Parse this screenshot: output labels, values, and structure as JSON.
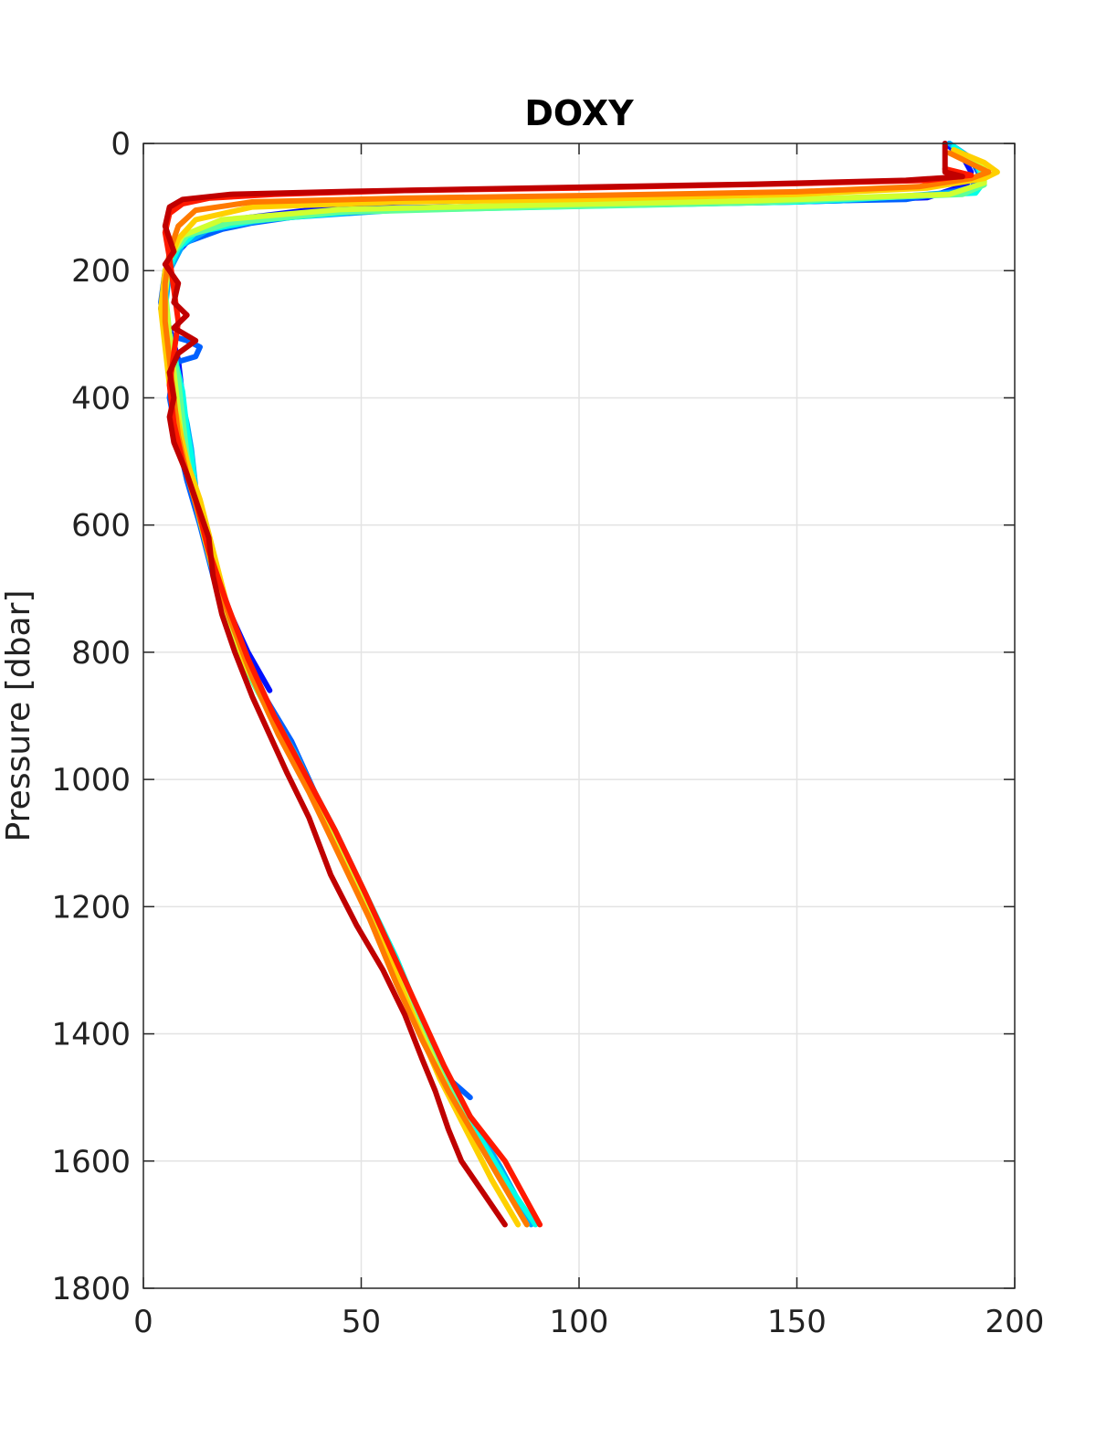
{
  "chart_data": {
    "type": "line",
    "title": "DOXY",
    "xlabel": "",
    "ylabel": "Pressure [dbar]",
    "xlim": [
      0,
      200
    ],
    "ylim": [
      0,
      1800
    ],
    "y_reversed": true,
    "grid": true,
    "xticks": [
      0,
      50,
      100,
      150,
      200
    ],
    "yticks": [
      0,
      200,
      400,
      600,
      800,
      1000,
      1200,
      1400,
      1600,
      1800
    ],
    "series": [
      {
        "color": "#0010ff",
        "points": [
          [
            184,
            0
          ],
          [
            188,
            20
          ],
          [
            190,
            45
          ],
          [
            189,
            65
          ],
          [
            180,
            85
          ],
          [
            150,
            92
          ],
          [
            110,
            97
          ],
          [
            70,
            100
          ],
          [
            40,
            103
          ],
          [
            20,
            120
          ],
          [
            12,
            140
          ],
          [
            8,
            170
          ],
          [
            5,
            210
          ],
          [
            4,
            260
          ],
          [
            6,
            290
          ],
          [
            8,
            340
          ],
          [
            9,
            400
          ],
          [
            9,
            460
          ],
          [
            10,
            520
          ],
          [
            13,
            570
          ],
          [
            15,
            620
          ],
          [
            17,
            680
          ],
          [
            20,
            740
          ],
          [
            24,
            800
          ],
          [
            29,
            860
          ]
        ]
      },
      {
        "color": "#0060ff",
        "points": [
          [
            185,
            0
          ],
          [
            190,
            25
          ],
          [
            192,
            50
          ],
          [
            190,
            70
          ],
          [
            175,
            88
          ],
          [
            120,
            95
          ],
          [
            70,
            100
          ],
          [
            40,
            110
          ],
          [
            25,
            125
          ],
          [
            18,
            135
          ],
          [
            14,
            145
          ],
          [
            8,
            160
          ],
          [
            5,
            200
          ],
          [
            4,
            250
          ],
          [
            5,
            300
          ],
          [
            10,
            310
          ],
          [
            13,
            320
          ],
          [
            12,
            335
          ],
          [
            7,
            345
          ],
          [
            6,
            400
          ],
          [
            8,
            470
          ],
          [
            10,
            530
          ],
          [
            13,
            600
          ],
          [
            16,
            680
          ],
          [
            20,
            760
          ],
          [
            27,
            860
          ],
          [
            34,
            940
          ],
          [
            40,
            1030
          ],
          [
            47,
            1140
          ],
          [
            53,
            1220
          ],
          [
            59,
            1320
          ],
          [
            65,
            1410
          ],
          [
            70,
            1470
          ],
          [
            75,
            1500
          ]
        ]
      },
      {
        "color": "#00a8ff",
        "points": [
          [
            185,
            0
          ],
          [
            191,
            28
          ],
          [
            193,
            55
          ],
          [
            190,
            75
          ],
          [
            160,
            90
          ],
          [
            110,
            97
          ],
          [
            60,
            104
          ],
          [
            30,
            118
          ],
          [
            15,
            135
          ],
          [
            9,
            160
          ],
          [
            6,
            200
          ],
          [
            5,
            260
          ],
          [
            6,
            320
          ],
          [
            8,
            380
          ],
          [
            10,
            440
          ],
          [
            11,
            480
          ],
          [
            12,
            540
          ],
          [
            15,
            620
          ],
          [
            18,
            700
          ],
          [
            22,
            790
          ],
          [
            28,
            880
          ],
          [
            35,
            960
          ],
          [
            42,
            1060
          ],
          [
            49,
            1160
          ],
          [
            56,
            1260
          ],
          [
            62,
            1360
          ],
          [
            68,
            1450
          ],
          [
            75,
            1530
          ],
          [
            82,
            1610
          ],
          [
            89,
            1700
          ]
        ]
      },
      {
        "color": "#00ffe8",
        "points": [
          [
            186,
            5
          ],
          [
            191,
            30
          ],
          [
            193,
            60
          ],
          [
            191,
            78
          ],
          [
            150,
            92
          ],
          [
            100,
            99
          ],
          [
            50,
            106
          ],
          [
            25,
            122
          ],
          [
            12,
            140
          ],
          [
            8,
            165
          ],
          [
            5,
            210
          ],
          [
            5,
            270
          ],
          [
            7,
            330
          ],
          [
            9,
            390
          ],
          [
            10,
            450
          ],
          [
            11,
            490
          ],
          [
            12,
            550
          ],
          [
            15,
            630
          ],
          [
            18,
            720
          ],
          [
            23,
            810
          ],
          [
            30,
            900
          ],
          [
            37,
            990
          ],
          [
            44,
            1080
          ],
          [
            51,
            1180
          ],
          [
            58,
            1280
          ],
          [
            64,
            1380
          ],
          [
            70,
            1470
          ],
          [
            77,
            1560
          ],
          [
            84,
            1640
          ],
          [
            90,
            1700
          ]
        ]
      },
      {
        "color": "#60ff98",
        "points": [
          [
            186,
            10
          ],
          [
            192,
            35
          ],
          [
            193,
            65
          ],
          [
            188,
            80
          ],
          [
            140,
            93
          ],
          [
            90,
            100
          ],
          [
            45,
            108
          ],
          [
            20,
            125
          ],
          [
            10,
            145
          ],
          [
            6,
            180
          ],
          [
            5,
            230
          ],
          [
            6,
            300
          ],
          [
            8,
            370
          ],
          [
            9,
            430
          ],
          [
            10,
            490
          ],
          [
            12,
            560
          ],
          [
            15,
            640
          ],
          [
            18,
            730
          ],
          [
            23,
            820
          ],
          [
            30,
            910
          ],
          [
            37,
            1000
          ],
          [
            44,
            1090
          ],
          [
            51,
            1190
          ],
          [
            58,
            1290
          ],
          [
            64,
            1390
          ],
          [
            70,
            1480
          ],
          [
            76,
            1560
          ],
          [
            82,
            1630
          ],
          [
            88,
            1700
          ]
        ]
      },
      {
        "color": "#d0ff30",
        "points": [
          [
            187,
            15
          ],
          [
            193,
            40
          ],
          [
            193,
            62
          ],
          [
            185,
            80
          ],
          [
            140,
            90
          ],
          [
            90,
            97
          ],
          [
            45,
            104
          ],
          [
            18,
            120
          ],
          [
            9,
            145
          ],
          [
            6,
            180
          ],
          [
            5,
            240
          ],
          [
            6,
            300
          ],
          [
            7,
            360
          ],
          [
            8,
            420
          ],
          [
            9,
            480
          ],
          [
            11,
            540
          ],
          [
            14,
            620
          ],
          [
            17,
            700
          ],
          [
            21,
            790
          ],
          [
            28,
            880
          ],
          [
            35,
            970
          ],
          [
            42,
            1070
          ],
          [
            49,
            1170
          ],
          [
            56,
            1270
          ],
          [
            62,
            1370
          ],
          [
            68,
            1460
          ],
          [
            74,
            1550
          ],
          [
            80,
            1630
          ],
          [
            86,
            1700
          ]
        ]
      },
      {
        "color": "#ffd000",
        "points": [
          [
            186,
            10
          ],
          [
            193,
            30
          ],
          [
            196,
            45
          ],
          [
            193,
            55
          ],
          [
            180,
            70
          ],
          [
            150,
            80
          ],
          [
            100,
            88
          ],
          [
            60,
            92
          ],
          [
            25,
            100
          ],
          [
            12,
            120
          ],
          [
            8,
            150
          ],
          [
            5,
            200
          ],
          [
            4,
            260
          ],
          [
            5,
            320
          ],
          [
            6,
            380
          ],
          [
            8,
            440
          ],
          [
            10,
            500
          ],
          [
            13,
            560
          ],
          [
            16,
            640
          ],
          [
            19,
            720
          ],
          [
            23,
            810
          ],
          [
            29,
            900
          ],
          [
            36,
            990
          ],
          [
            43,
            1090
          ],
          [
            50,
            1190
          ],
          [
            57,
            1290
          ],
          [
            63,
            1390
          ],
          [
            68,
            1470
          ],
          [
            74,
            1550
          ],
          [
            80,
            1630
          ],
          [
            86,
            1700
          ]
        ]
      },
      {
        "color": "#ff7a00",
        "points": [
          [
            185,
            15
          ],
          [
            191,
            35
          ],
          [
            194,
            45
          ],
          [
            190,
            55
          ],
          [
            178,
            68
          ],
          [
            150,
            76
          ],
          [
            100,
            82
          ],
          [
            60,
            86
          ],
          [
            25,
            92
          ],
          [
            12,
            105
          ],
          [
            8,
            130
          ],
          [
            6,
            170
          ],
          [
            5,
            220
          ],
          [
            5,
            280
          ],
          [
            6,
            340
          ],
          [
            7,
            400
          ],
          [
            8,
            460
          ],
          [
            10,
            520
          ],
          [
            13,
            590
          ],
          [
            16,
            670
          ],
          [
            20,
            750
          ],
          [
            25,
            840
          ],
          [
            31,
            930
          ],
          [
            38,
            1020
          ],
          [
            45,
            1120
          ],
          [
            52,
            1220
          ],
          [
            58,
            1320
          ],
          [
            64,
            1410
          ],
          [
            70,
            1490
          ],
          [
            76,
            1560
          ],
          [
            82,
            1630
          ],
          [
            88,
            1700
          ]
        ]
      },
      {
        "color": "#ff1a00",
        "points": [
          [
            184,
            40
          ],
          [
            190,
            50
          ],
          [
            180,
            58
          ],
          [
            150,
            63
          ],
          [
            100,
            70
          ],
          [
            60,
            74
          ],
          [
            30,
            80
          ],
          [
            15,
            86
          ],
          [
            9,
            95
          ],
          [
            6,
            110
          ],
          [
            5,
            140
          ],
          [
            6,
            180
          ],
          [
            7,
            230
          ],
          [
            8,
            280
          ],
          [
            7,
            330
          ],
          [
            6,
            380
          ],
          [
            7,
            440
          ],
          [
            9,
            500
          ],
          [
            12,
            560
          ],
          [
            15,
            640
          ],
          [
            19,
            720
          ],
          [
            24,
            810
          ],
          [
            30,
            900
          ],
          [
            37,
            990
          ],
          [
            44,
            1080
          ],
          [
            51,
            1180
          ],
          [
            57,
            1270
          ],
          [
            63,
            1360
          ],
          [
            69,
            1450
          ],
          [
            75,
            1530
          ],
          [
            83,
            1600
          ],
          [
            91,
            1700
          ]
        ]
      },
      {
        "color": "#c00000",
        "points": [
          [
            184,
            0
          ],
          [
            184,
            45
          ],
          [
            188,
            52
          ],
          [
            175,
            58
          ],
          [
            140,
            64
          ],
          [
            90,
            70
          ],
          [
            50,
            75
          ],
          [
            20,
            80
          ],
          [
            9,
            88
          ],
          [
            6,
            100
          ],
          [
            5,
            130
          ],
          [
            7,
            170
          ],
          [
            5,
            190
          ],
          [
            8,
            220
          ],
          [
            7,
            250
          ],
          [
            10,
            270
          ],
          [
            7,
            290
          ],
          [
            12,
            310
          ],
          [
            8,
            330
          ],
          [
            6,
            360
          ],
          [
            7,
            400
          ],
          [
            6,
            430
          ],
          [
            7,
            470
          ],
          [
            10,
            520
          ],
          [
            12,
            560
          ],
          [
            15,
            620
          ],
          [
            16,
            680
          ],
          [
            18,
            740
          ],
          [
            21,
            800
          ],
          [
            25,
            870
          ],
          [
            29,
            930
          ],
          [
            33,
            990
          ],
          [
            38,
            1060
          ],
          [
            43,
            1150
          ],
          [
            49,
            1230
          ],
          [
            55,
            1300
          ],
          [
            60,
            1370
          ],
          [
            64,
            1440
          ],
          [
            67,
            1490
          ],
          [
            70,
            1550
          ],
          [
            73,
            1600
          ],
          [
            78,
            1650
          ],
          [
            83,
            1700
          ]
        ]
      }
    ]
  }
}
